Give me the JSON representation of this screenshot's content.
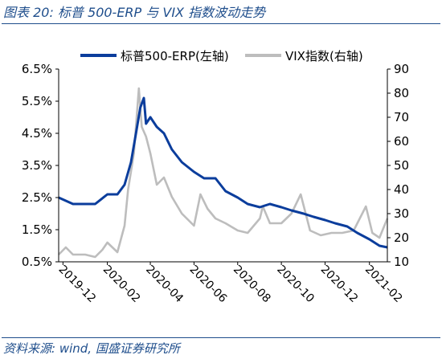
{
  "figure": {
    "title": "图表 20:  标普 500-ERP 与 VIX 指数波动走势",
    "source": "资料来源: wind, 国盛证券研究所"
  },
  "colors": {
    "erp": "#0b3d9c",
    "vix": "#bdbdbd",
    "axis": "#000000"
  },
  "chart_data": {
    "type": "line",
    "title": "",
    "xlabel": "",
    "ylabel_left": "",
    "ylabel_right": "",
    "x_ticks": [
      "2019-12",
      "2020-02",
      "2020-04",
      "2020-06",
      "2020-08",
      "2020-10",
      "2020-12",
      "2021-02"
    ],
    "x_range": [
      "2019-11-25",
      "2021-02-26"
    ],
    "y_left": {
      "range": [
        0.5,
        6.5
      ],
      "ticks": [
        "0.5%",
        "1.5%",
        "2.5%",
        "3.5%",
        "4.5%",
        "5.5%",
        "6.5%"
      ]
    },
    "y_right": {
      "range": [
        10,
        90
      ],
      "ticks": [
        "10",
        "20",
        "30",
        "40",
        "50",
        "60",
        "70",
        "80",
        "90"
      ]
    },
    "legend_position": "top",
    "series": [
      {
        "name": "标普500-ERP(左轴)",
        "axis": "left",
        "points": [
          [
            "2019-11-25",
            2.5
          ],
          [
            "2019-12-05",
            2.4
          ],
          [
            "2019-12-15",
            2.3
          ],
          [
            "2020-01-01",
            2.3
          ],
          [
            "2020-01-15",
            2.3
          ],
          [
            "2020-02-01",
            2.6
          ],
          [
            "2020-02-15",
            2.6
          ],
          [
            "2020-02-25",
            2.9
          ],
          [
            "2020-03-05",
            3.6
          ],
          [
            "2020-03-12",
            4.5
          ],
          [
            "2020-03-18",
            5.3
          ],
          [
            "2020-03-23",
            5.6
          ],
          [
            "2020-03-26",
            4.8
          ],
          [
            "2020-04-01",
            5.0
          ],
          [
            "2020-04-10",
            4.7
          ],
          [
            "2020-04-20",
            4.5
          ],
          [
            "2020-05-01",
            4.0
          ],
          [
            "2020-05-15",
            3.6
          ],
          [
            "2020-06-01",
            3.3
          ],
          [
            "2020-06-15",
            3.1
          ],
          [
            "2020-07-01",
            3.1
          ],
          [
            "2020-07-15",
            2.7
          ],
          [
            "2020-08-01",
            2.5
          ],
          [
            "2020-08-15",
            2.3
          ],
          [
            "2020-09-01",
            2.2
          ],
          [
            "2020-09-15",
            2.3
          ],
          [
            "2020-10-01",
            2.2
          ],
          [
            "2020-10-15",
            2.1
          ],
          [
            "2020-11-01",
            2.0
          ],
          [
            "2020-11-15",
            1.9
          ],
          [
            "2020-12-01",
            1.8
          ],
          [
            "2020-12-15",
            1.7
          ],
          [
            "2021-01-01",
            1.6
          ],
          [
            "2021-01-15",
            1.4
          ],
          [
            "2021-02-01",
            1.2
          ],
          [
            "2021-02-15",
            1.0
          ],
          [
            "2021-02-26",
            0.95
          ]
        ]
      },
      {
        "name": "VIX指数(右轴)",
        "axis": "right",
        "points": [
          [
            "2019-11-25",
            13
          ],
          [
            "2019-12-05",
            16
          ],
          [
            "2019-12-15",
            13
          ],
          [
            "2020-01-01",
            13
          ],
          [
            "2020-01-15",
            12
          ],
          [
            "2020-01-25",
            15
          ],
          [
            "2020-02-01",
            18
          ],
          [
            "2020-02-15",
            14
          ],
          [
            "2020-02-25",
            25
          ],
          [
            "2020-03-01",
            40
          ],
          [
            "2020-03-09",
            55
          ],
          [
            "2020-03-16",
            82
          ],
          [
            "2020-03-20",
            66
          ],
          [
            "2020-03-26",
            62
          ],
          [
            "2020-04-01",
            55
          ],
          [
            "2020-04-10",
            42
          ],
          [
            "2020-04-20",
            45
          ],
          [
            "2020-05-01",
            37
          ],
          [
            "2020-05-15",
            30
          ],
          [
            "2020-06-01",
            25
          ],
          [
            "2020-06-10",
            38
          ],
          [
            "2020-06-20",
            32
          ],
          [
            "2020-07-01",
            28
          ],
          [
            "2020-07-15",
            26
          ],
          [
            "2020-08-01",
            23
          ],
          [
            "2020-08-15",
            22
          ],
          [
            "2020-09-01",
            28
          ],
          [
            "2020-09-05",
            33
          ],
          [
            "2020-09-15",
            26
          ],
          [
            "2020-10-01",
            26
          ],
          [
            "2020-10-15",
            30
          ],
          [
            "2020-10-28",
            38
          ],
          [
            "2020-11-10",
            23
          ],
          [
            "2020-11-25",
            21
          ],
          [
            "2020-12-10",
            22
          ],
          [
            "2020-12-25",
            22
          ],
          [
            "2021-01-10",
            23
          ],
          [
            "2021-01-27",
            33
          ],
          [
            "2021-02-05",
            22
          ],
          [
            "2021-02-15",
            20
          ],
          [
            "2021-02-26",
            28
          ]
        ]
      }
    ]
  }
}
